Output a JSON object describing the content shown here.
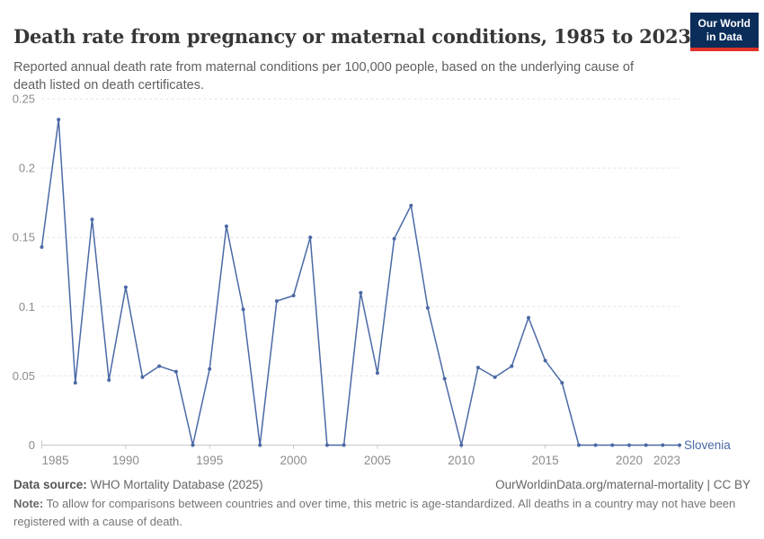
{
  "header": {
    "title": "Death rate from pregnancy or maternal conditions, 1985 to 2023",
    "subtitle": "Reported annual death rate from maternal conditions per 100,000 people, based on the underlying cause of death listed on death certificates.",
    "logo_line1": "Our World",
    "logo_line2": "in Data"
  },
  "chart_data": {
    "type": "line",
    "title": "Death rate from pregnancy or maternal conditions, 1985 to 2023",
    "x": [
      1985,
      1986,
      1987,
      1988,
      1989,
      1990,
      1991,
      1992,
      1993,
      1994,
      1995,
      1996,
      1997,
      1998,
      1999,
      2000,
      2001,
      2002,
      2003,
      2004,
      2005,
      2006,
      2007,
      2008,
      2009,
      2010,
      2011,
      2012,
      2013,
      2014,
      2015,
      2016,
      2017,
      2018,
      2019,
      2020,
      2021,
      2022,
      2023
    ],
    "series": [
      {
        "name": "Slovenia",
        "values": [
          0.143,
          0.235,
          0.045,
          0.163,
          0.047,
          0.114,
          0.049,
          0.057,
          0.053,
          0,
          0.055,
          0.158,
          0.098,
          0,
          0.104,
          0.108,
          0.15,
          0,
          0,
          0.11,
          0.052,
          0.149,
          0.173,
          0.099,
          0.048,
          0,
          0.056,
          0.049,
          0.057,
          0.092,
          0.061,
          0.045,
          0,
          0,
          0,
          0,
          0,
          0,
          0
        ]
      }
    ],
    "xlabel": "",
    "ylabel": "",
    "xlim": [
      1985,
      2023
    ],
    "ylim": [
      0,
      0.25
    ],
    "x_ticks": [
      1985,
      1990,
      1995,
      2000,
      2005,
      2010,
      2015,
      2020,
      2023
    ],
    "y_ticks": [
      0,
      0.05,
      0.1,
      0.15,
      0.2,
      0.25
    ],
    "y_tick_labels": [
      "0",
      "0.05",
      "0.1",
      "0.15",
      "0.2",
      "0.25"
    ],
    "grid": "horizontal dashed, legend as end-of-line label",
    "line_color": "#4b69a5",
    "grid_color": "#e2e2e2",
    "axis_color": "#c8c8c8",
    "tick_label_color": "#8c8c8c"
  },
  "footer": {
    "source_label": "Data source:",
    "source_value": " WHO Mortality Database (2025)",
    "credit": "OurWorldinData.org/maternal-mortality | CC BY",
    "note_label": "Note:",
    "note_value": " To allow for comparisons between countries and over time, this metric is age-standardized. All deaths in a country may not have been registered with a cause of death."
  },
  "colors": {
    "line": "#4b69a5",
    "logo_bg": "#0a2d5a",
    "logo_stripe": "#e03228",
    "title_text": "#373737",
    "muted_text": "#5f5f5f"
  }
}
